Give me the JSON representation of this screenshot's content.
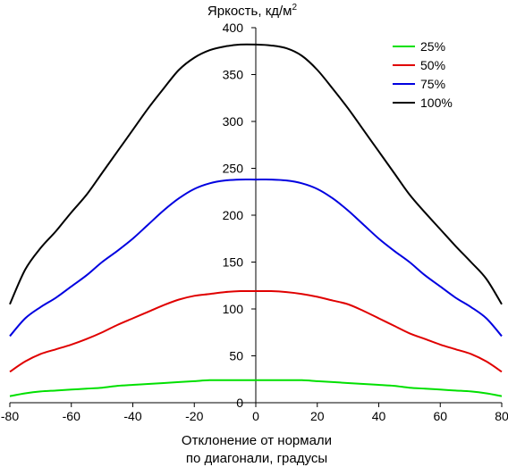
{
  "chart_data": {
    "type": "line",
    "title": "",
    "ylabel": "Яркость, кд/м",
    "ylabel_superscript": "2",
    "xlabel_lines": [
      "Отклонение от нормали",
      "по диагонали, градусы"
    ],
    "xlim": [
      -80,
      80
    ],
    "ylim": [
      0,
      400
    ],
    "xticks": [
      -80,
      -60,
      -40,
      -20,
      0,
      20,
      40,
      60,
      80
    ],
    "yticks": [
      0,
      50,
      100,
      150,
      200,
      250,
      300,
      350,
      400
    ],
    "grid": false,
    "legend_position": "top-right",
    "x": [
      -80,
      -75,
      -70,
      -65,
      -60,
      -55,
      -50,
      -45,
      -40,
      -35,
      -30,
      -25,
      -20,
      -15,
      -10,
      -5,
      0,
      5,
      10,
      15,
      20,
      25,
      30,
      35,
      40,
      45,
      50,
      55,
      60,
      65,
      70,
      75,
      80
    ],
    "series": [
      {
        "name": "25%",
        "color": "#00e000",
        "values": [
          7,
          10,
          12,
          13,
          14,
          15,
          16,
          18,
          19,
          20,
          21,
          22,
          23,
          24,
          24,
          24,
          24,
          24,
          24,
          24,
          23,
          22,
          21,
          20,
          19,
          18,
          16,
          15,
          14,
          13,
          12,
          10,
          7
        ]
      },
      {
        "name": "50%",
        "color": "#e00000",
        "values": [
          33,
          44,
          52,
          57,
          62,
          68,
          75,
          83,
          90,
          97,
          104,
          110,
          114,
          116,
          118,
          119,
          119,
          119,
          118,
          116,
          113,
          109,
          105,
          98,
          90,
          82,
          74,
          68,
          62,
          57,
          52,
          44,
          33
        ]
      },
      {
        "name": "75%",
        "color": "#0000e0",
        "values": [
          71,
          90,
          102,
          112,
          124,
          136,
          150,
          162,
          175,
          190,
          205,
          218,
          228,
          234,
          237,
          238,
          238,
          238,
          237,
          234,
          228,
          218,
          205,
          190,
          175,
          162,
          150,
          136,
          124,
          112,
          102,
          90,
          71
        ]
      },
      {
        "name": "100%",
        "color": "#000000",
        "values": [
          105,
          142,
          165,
          183,
          203,
          222,
          245,
          268,
          291,
          314,
          335,
          355,
          368,
          376,
          380,
          382,
          382,
          381,
          378,
          370,
          355,
          335,
          314,
          291,
          268,
          245,
          222,
          203,
          185,
          167,
          150,
          132,
          105
        ]
      }
    ]
  }
}
